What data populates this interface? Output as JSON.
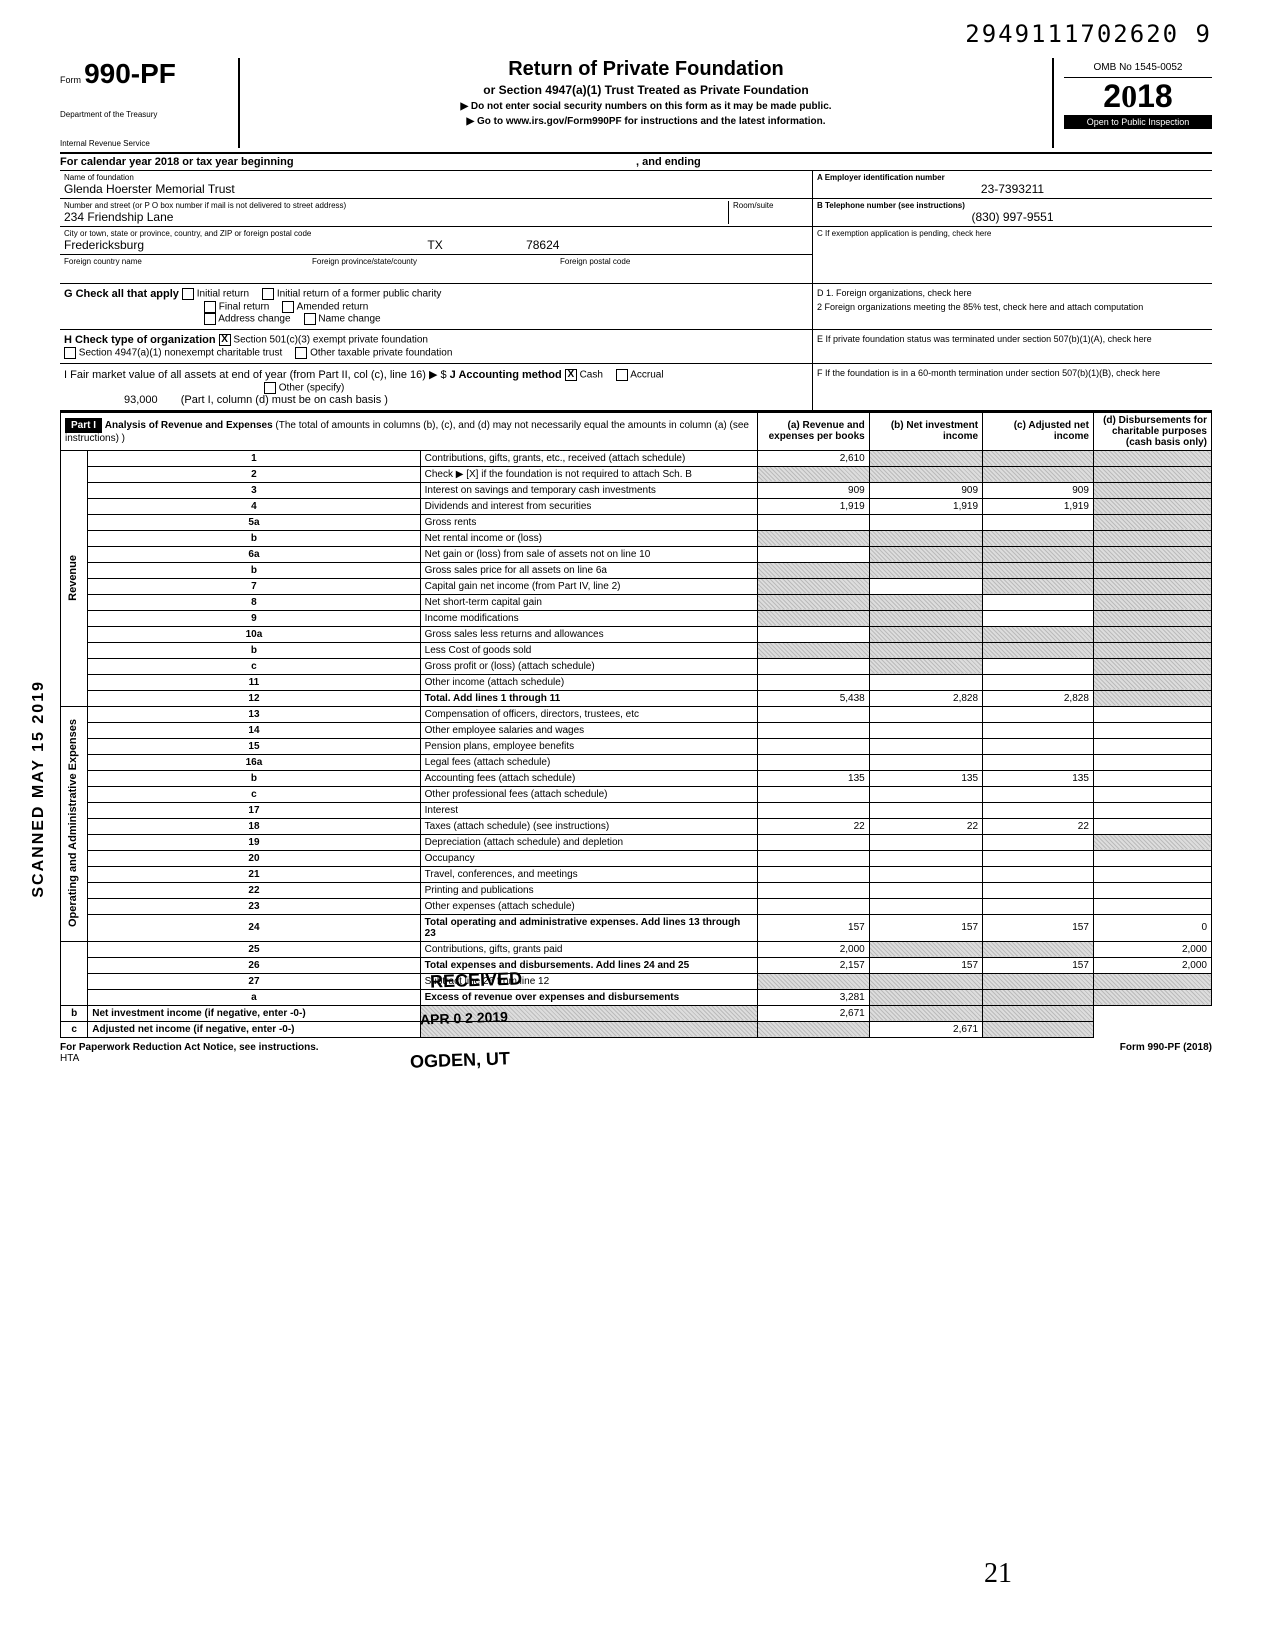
{
  "page_id": "2949111702620 9",
  "form": {
    "prefix": "Form",
    "number": "990-PF",
    "dept1": "Department of the Treasury",
    "dept2": "Internal Revenue Service"
  },
  "title": {
    "main": "Return of Private Foundation",
    "sub": "or Section 4947(a)(1) Trust Treated as Private Foundation",
    "note1": "▶ Do not enter social security numbers on this form as it may be made public.",
    "note2": "▶ Go to www.irs.gov/Form990PF for instructions and the latest information."
  },
  "year_box": {
    "omb": "OMB No 1545-0052",
    "year": "2018",
    "inspection": "Open to Public Inspection"
  },
  "cal_year": {
    "text": "For calendar year 2018 or tax year beginning",
    "ending": ", and ending"
  },
  "foundation": {
    "name_label": "Name of foundation",
    "name": "Glenda Hoerster Memorial Trust",
    "addr_label": "Number and street (or P O box number if mail is not delivered to street address)",
    "addr": "234 Friendship Lane",
    "room_label": "Room/suite",
    "city_label": "City or town, state or province, country, and ZIP or foreign postal code",
    "city": "Fredericksburg",
    "state": "TX",
    "zip": "78624",
    "foreign_country": "Foreign country name",
    "foreign_prov": "Foreign province/state/county",
    "foreign_postal": "Foreign postal code"
  },
  "right_info": {
    "ein_label": "A Employer identification number",
    "ein": "23-7393211",
    "phone_label": "B Telephone number (see instructions)",
    "phone": "(830) 997-9551",
    "c_label": "C If exemption application is pending, check here",
    "d1": "D 1. Foreign organizations, check here",
    "d2": "2 Foreign organizations meeting the 85% test, check here and attach computation",
    "e_label": "E If private foundation status was terminated under section 507(b)(1)(A), check here",
    "f_label": "F If the foundation is in a 60-month termination under section 507(b)(1)(B), check here"
  },
  "check_g": {
    "label": "G Check all that apply",
    "opts": [
      "Initial return",
      "Initial return of a former public charity",
      "Final return",
      "Amended return",
      "Address change",
      "Name change"
    ]
  },
  "check_h": {
    "label": "H Check type of organization",
    "opt1": "Section 501(c)(3) exempt private foundation",
    "opt2": "Section 4947(a)(1) nonexempt charitable trust",
    "opt3": "Other taxable private foundation",
    "checked": "X"
  },
  "check_i": {
    "label": "I Fair market value of all assets at end of year (from Part II, col (c), line 16) ▶ $",
    "value": "93,000"
  },
  "check_j": {
    "label": "J Accounting method",
    "cash": "Cash",
    "accrual": "Accrual",
    "other": "Other (specify)",
    "note": "(Part I, column (d) must be on cash basis )",
    "checked": "X"
  },
  "part1": {
    "header": "Part I",
    "title": "Analysis of Revenue and Expenses",
    "subtitle": "(The total of amounts in columns (b), (c), and (d) may not necessarily equal the amounts in column (a) (see instructions) )",
    "col_a": "(a) Revenue and expenses per books",
    "col_b": "(b) Net investment income",
    "col_c": "(c) Adjusted net income",
    "col_d": "(d) Disbursements for charitable purposes (cash basis only)"
  },
  "sections": {
    "revenue": "Revenue",
    "expenses": "Operating and Administrative Expenses"
  },
  "lines": [
    {
      "n": "1",
      "desc": "Contributions, gifts, grants, etc., received (attach schedule)",
      "a": "2,610",
      "b": "",
      "c": "",
      "d": "",
      "shade": [
        "b",
        "c",
        "d"
      ]
    },
    {
      "n": "2",
      "desc": "Check ▶ [X] if the foundation is not required to attach Sch. B",
      "a": "",
      "b": "",
      "c": "",
      "d": "",
      "shade": [
        "a",
        "b",
        "c",
        "d"
      ]
    },
    {
      "n": "3",
      "desc": "Interest on savings and temporary cash investments",
      "a": "909",
      "b": "909",
      "c": "909",
      "d": "",
      "shade": [
        "d"
      ]
    },
    {
      "n": "4",
      "desc": "Dividends and interest from securities",
      "a": "1,919",
      "b": "1,919",
      "c": "1,919",
      "d": "",
      "shade": [
        "d"
      ]
    },
    {
      "n": "5a",
      "desc": "Gross rents",
      "a": "",
      "b": "",
      "c": "",
      "d": "",
      "shade": [
        "d"
      ]
    },
    {
      "n": "b",
      "desc": "Net rental income or (loss)",
      "a": "",
      "b": "",
      "c": "",
      "d": "",
      "shade": [
        "a",
        "b",
        "c",
        "d"
      ]
    },
    {
      "n": "6a",
      "desc": "Net gain or (loss) from sale of assets not on line 10",
      "a": "",
      "b": "",
      "c": "",
      "d": "",
      "shade": [
        "b",
        "c",
        "d"
      ]
    },
    {
      "n": "b",
      "desc": "Gross sales price for all assets on line 6a",
      "a": "",
      "b": "",
      "c": "",
      "d": "",
      "shade": [
        "a",
        "b",
        "c",
        "d"
      ]
    },
    {
      "n": "7",
      "desc": "Capital gain net income (from Part IV, line 2)",
      "a": "",
      "b": "",
      "c": "",
      "d": "",
      "shade": [
        "a",
        "c",
        "d"
      ]
    },
    {
      "n": "8",
      "desc": "Net short-term capital gain",
      "a": "",
      "b": "",
      "c": "",
      "d": "",
      "shade": [
        "a",
        "b",
        "d"
      ]
    },
    {
      "n": "9",
      "desc": "Income modifications",
      "a": "",
      "b": "",
      "c": "",
      "d": "",
      "shade": [
        "a",
        "b",
        "d"
      ]
    },
    {
      "n": "10a",
      "desc": "Gross sales less returns and allowances",
      "a": "",
      "b": "",
      "c": "",
      "d": "",
      "shade": [
        "b",
        "c",
        "d"
      ]
    },
    {
      "n": "b",
      "desc": "Less Cost of goods sold",
      "a": "",
      "b": "",
      "c": "",
      "d": "",
      "shade": [
        "a",
        "b",
        "c",
        "d"
      ]
    },
    {
      "n": "c",
      "desc": "Gross profit or (loss) (attach schedule)",
      "a": "",
      "b": "",
      "c": "",
      "d": "",
      "shade": [
        "b",
        "d"
      ]
    },
    {
      "n": "11",
      "desc": "Other income (attach schedule)",
      "a": "",
      "b": "",
      "c": "",
      "d": "",
      "shade": [
        "d"
      ]
    },
    {
      "n": "12",
      "desc": "Total. Add lines 1 through 11",
      "a": "5,438",
      "b": "2,828",
      "c": "2,828",
      "d": "",
      "shade": [
        "d"
      ],
      "bold": true
    },
    {
      "n": "13",
      "desc": "Compensation of officers, directors, trustees, etc",
      "a": "",
      "b": "",
      "c": "",
      "d": ""
    },
    {
      "n": "14",
      "desc": "Other employee salaries and wages",
      "a": "",
      "b": "",
      "c": "",
      "d": ""
    },
    {
      "n": "15",
      "desc": "Pension plans, employee benefits",
      "a": "",
      "b": "",
      "c": "",
      "d": ""
    },
    {
      "n": "16a",
      "desc": "Legal fees (attach schedule)",
      "a": "",
      "b": "",
      "c": "",
      "d": ""
    },
    {
      "n": "b",
      "desc": "Accounting fees (attach schedule)",
      "a": "135",
      "b": "135",
      "c": "135",
      "d": ""
    },
    {
      "n": "c",
      "desc": "Other professional fees (attach schedule)",
      "a": "",
      "b": "",
      "c": "",
      "d": ""
    },
    {
      "n": "17",
      "desc": "Interest",
      "a": "",
      "b": "",
      "c": "",
      "d": ""
    },
    {
      "n": "18",
      "desc": "Taxes (attach schedule) (see instructions)",
      "a": "22",
      "b": "22",
      "c": "22",
      "d": ""
    },
    {
      "n": "19",
      "desc": "Depreciation (attach schedule) and depletion",
      "a": "",
      "b": "",
      "c": "",
      "d": "",
      "shade": [
        "d"
      ]
    },
    {
      "n": "20",
      "desc": "Occupancy",
      "a": "",
      "b": "",
      "c": "",
      "d": ""
    },
    {
      "n": "21",
      "desc": "Travel, conferences, and meetings",
      "a": "",
      "b": "",
      "c": "",
      "d": ""
    },
    {
      "n": "22",
      "desc": "Printing and publications",
      "a": "",
      "b": "",
      "c": "",
      "d": ""
    },
    {
      "n": "23",
      "desc": "Other expenses (attach schedule)",
      "a": "",
      "b": "",
      "c": "",
      "d": ""
    },
    {
      "n": "24",
      "desc": "Total operating and administrative expenses. Add lines 13 through 23",
      "a": "157",
      "b": "157",
      "c": "157",
      "d": "0",
      "bold": true
    },
    {
      "n": "25",
      "desc": "Contributions, gifts, grants paid",
      "a": "2,000",
      "b": "",
      "c": "",
      "d": "2,000",
      "shade": [
        "b",
        "c"
      ]
    },
    {
      "n": "26",
      "desc": "Total expenses and disbursements. Add lines 24 and 25",
      "a": "2,157",
      "b": "157",
      "c": "157",
      "d": "2,000",
      "bold": true
    },
    {
      "n": "27",
      "desc": "Subtract line 26 from line 12",
      "a": "",
      "b": "",
      "c": "",
      "d": "",
      "shade": [
        "a",
        "b",
        "c",
        "d"
      ]
    },
    {
      "n": "a",
      "desc": "Excess of revenue over expenses and disbursements",
      "a": "3,281",
      "b": "",
      "c": "",
      "d": "",
      "shade": [
        "b",
        "c",
        "d"
      ],
      "bold": true
    },
    {
      "n": "b",
      "desc": "Net investment income (if negative, enter -0-)",
      "a": "",
      "b": "2,671",
      "c": "",
      "d": "",
      "shade": [
        "a",
        "c",
        "d"
      ],
      "bold": true
    },
    {
      "n": "c",
      "desc": "Adjusted net income (if negative, enter -0-)",
      "a": "",
      "b": "",
      "c": "2,671",
      "d": "",
      "shade": [
        "a",
        "b",
        "d"
      ],
      "bold": true
    }
  ],
  "stamps": {
    "received": "RECEIVED",
    "date": "APR 0 2 2019",
    "ogden": "OGDEN, UT",
    "scanned": "SCANNED MAY 15 2019"
  },
  "footer": {
    "left": "For Paperwork Reduction Act Notice, see instructions.",
    "hta": "HTA",
    "right": "Form 990-PF (2018)"
  },
  "handwritten": "21"
}
